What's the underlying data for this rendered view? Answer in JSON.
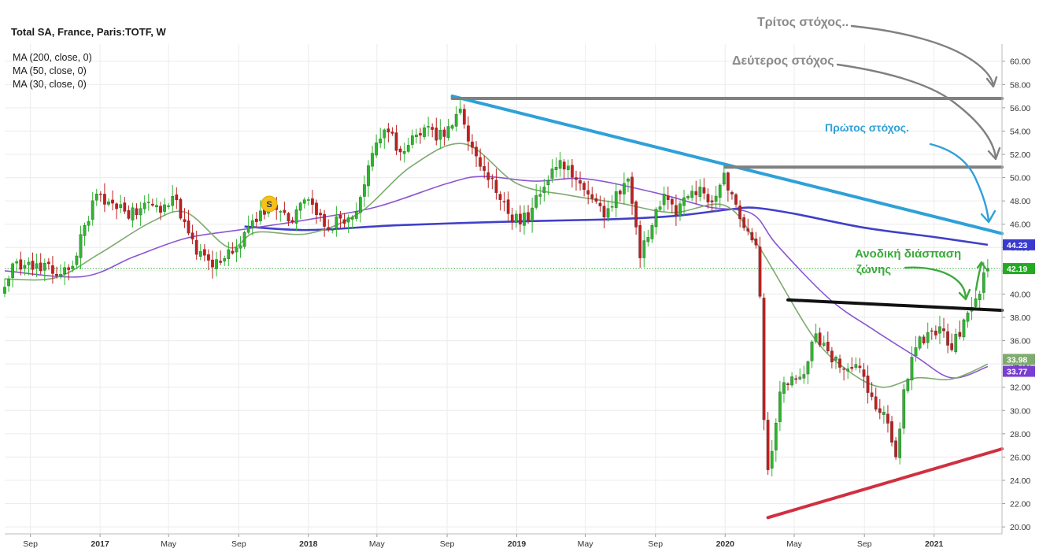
{
  "colors": {
    "up": "#2db52d",
    "down": "#c01f1f",
    "grid": "#ececec",
    "ma200": "#4040c8",
    "ma50": "#8a55d4",
    "ma30": "#7faa70",
    "trend_blue": "#2fa0d8",
    "target_gray": "#808080",
    "neckline": "#111111",
    "support_red": "#d03040",
    "annot_green": "#3caa3c"
  },
  "chart_data": {
    "type": "candlestick",
    "title": "Total SA, France, Paris:TOTF, W",
    "legend": [
      "MA (200, close, 0)",
      "MA (50, close, 0)",
      "MA (30, close, 0)"
    ],
    "y_axis": {
      "position": "right",
      "ylim": [
        19.4,
        61.2
      ],
      "ticks": [
        "20.00",
        "22.00",
        "24.00",
        "26.00",
        "28.00",
        "30.00",
        "32.00",
        "34.00",
        "36.00",
        "38.00",
        "40.00",
        "42.00",
        "44.00",
        "46.00",
        "48.00",
        "50.00",
        "52.00",
        "54.00",
        "56.00",
        "58.00",
        "60.00"
      ]
    },
    "x_axis": {
      "start": "2016-07-18",
      "end": "2021-04-30",
      "ticks": [
        {
          "label": "Sep",
          "date": "2016-09-01",
          "bold": false
        },
        {
          "label": "2017",
          "date": "2017-01-01",
          "bold": true
        },
        {
          "label": "May",
          "date": "2017-05-01",
          "bold": false
        },
        {
          "label": "Sep",
          "date": "2017-09-01",
          "bold": false
        },
        {
          "label": "2018",
          "date": "2018-01-01",
          "bold": true
        },
        {
          "label": "May",
          "date": "2018-05-01",
          "bold": false
        },
        {
          "label": "Sep",
          "date": "2018-09-01",
          "bold": false
        },
        {
          "label": "2019",
          "date": "2019-01-01",
          "bold": true
        },
        {
          "label": "May",
          "date": "2019-05-01",
          "bold": false
        },
        {
          "label": "Sep",
          "date": "2019-09-01",
          "bold": false
        },
        {
          "label": "2020",
          "date": "2020-01-01",
          "bold": true
        },
        {
          "label": "May",
          "date": "2020-05-01",
          "bold": false
        },
        {
          "label": "Sep",
          "date": "2020-09-01",
          "bold": false
        },
        {
          "label": "2021",
          "date": "2021-01-01",
          "bold": true
        }
      ]
    },
    "close_anchors": [
      [
        "2016-07-18",
        40.6
      ],
      [
        "2016-08-08",
        42.8
      ],
      [
        "2016-09-05",
        42.1
      ],
      [
        "2016-10-03",
        42.6
      ],
      [
        "2016-10-24",
        41.7
      ],
      [
        "2016-11-14",
        42.4
      ],
      [
        "2016-12-05",
        45.9
      ],
      [
        "2016-12-26",
        48.6
      ],
      [
        "2017-01-23",
        47.8
      ],
      [
        "2017-02-13",
        47.1
      ],
      [
        "2017-03-06",
        46.8
      ],
      [
        "2017-03-27",
        47.9
      ],
      [
        "2017-04-17",
        47.0
      ],
      [
        "2017-05-08",
        48.4
      ],
      [
        "2017-05-29",
        46.2
      ],
      [
        "2017-06-19",
        43.4
      ],
      [
        "2017-07-10",
        42.9
      ],
      [
        "2017-07-31",
        42.7
      ],
      [
        "2017-08-21",
        43.5
      ],
      [
        "2017-09-11",
        45.3
      ],
      [
        "2017-10-02",
        46.2
      ],
      [
        "2017-10-23",
        47.6
      ],
      [
        "2017-11-13",
        47.1
      ],
      [
        "2017-12-04",
        46.2
      ],
      [
        "2017-12-25",
        48.1
      ],
      [
        "2018-01-15",
        46.8
      ],
      [
        "2018-02-05",
        45.5
      ],
      [
        "2018-02-26",
        46.5
      ],
      [
        "2018-03-19",
        46.6
      ],
      [
        "2018-04-09",
        49.4
      ],
      [
        "2018-04-30",
        53.0
      ],
      [
        "2018-05-21",
        53.9
      ],
      [
        "2018-06-11",
        52.2
      ],
      [
        "2018-07-02",
        53.6
      ],
      [
        "2018-07-23",
        54.3
      ],
      [
        "2018-08-13",
        53.2
      ],
      [
        "2018-09-03",
        54.4
      ],
      [
        "2018-09-24",
        55.9
      ],
      [
        "2018-10-15",
        52.6
      ],
      [
        "2018-11-05",
        50.6
      ],
      [
        "2018-11-26",
        48.7
      ],
      [
        "2018-12-17",
        46.9
      ],
      [
        "2019-01-07",
        46.0
      ],
      [
        "2019-01-28",
        47.4
      ],
      [
        "2019-02-18",
        49.2
      ],
      [
        "2019-03-11",
        50.9
      ],
      [
        "2019-04-01",
        51.0
      ],
      [
        "2019-04-22",
        49.5
      ],
      [
        "2019-05-13",
        48.2
      ],
      [
        "2019-06-03",
        46.6
      ],
      [
        "2019-06-24",
        48.8
      ],
      [
        "2019-07-15",
        49.9
      ],
      [
        "2019-08-05",
        43.1
      ],
      [
        "2019-08-26",
        45.9
      ],
      [
        "2019-09-16",
        48.6
      ],
      [
        "2019-10-07",
        46.8
      ],
      [
        "2019-10-28",
        48.4
      ],
      [
        "2019-11-18",
        49.2
      ],
      [
        "2019-12-09",
        47.9
      ],
      [
        "2019-12-30",
        50.4
      ],
      [
        "2020-01-20",
        47.7
      ],
      [
        "2020-02-10",
        45.4
      ],
      [
        "2020-02-24",
        44.2
      ],
      [
        "2020-03-02",
        39.8
      ],
      [
        "2020-03-09",
        29.2
      ],
      [
        "2020-03-16",
        24.9
      ],
      [
        "2020-03-23",
        26.5
      ],
      [
        "2020-04-06",
        31.6
      ],
      [
        "2020-04-27",
        32.9
      ],
      [
        "2020-05-18",
        33.1
      ],
      [
        "2020-06-08",
        36.6
      ],
      [
        "2020-06-29",
        35.1
      ],
      [
        "2020-07-20",
        33.7
      ],
      [
        "2020-08-10",
        33.6
      ],
      [
        "2020-08-31",
        32.9
      ],
      [
        "2020-09-21",
        30.1
      ],
      [
        "2020-10-12",
        28.9
      ],
      [
        "2020-10-26",
        26.0
      ],
      [
        "2020-11-09",
        31.8
      ],
      [
        "2020-11-30",
        35.4
      ],
      [
        "2020-12-21",
        36.7
      ],
      [
        "2021-01-11",
        37.2
      ],
      [
        "2021-02-01",
        35.2
      ],
      [
        "2021-02-22",
        37.8
      ],
      [
        "2021-03-15",
        39.6
      ],
      [
        "2021-04-05",
        42.19
      ]
    ],
    "moving_averages": [
      {
        "name": "MA (200, close, 0)",
        "color": "#4040c8",
        "points": [
          [
            "2017-09-11",
            45.8
          ],
          [
            "2018-01-01",
            45.5
          ],
          [
            "2018-06-01",
            45.9
          ],
          [
            "2018-12-01",
            46.2
          ],
          [
            "2019-06-01",
            46.4
          ],
          [
            "2019-10-01",
            46.7
          ],
          [
            "2020-01-13",
            47.3
          ],
          [
            "2020-02-24",
            47.4
          ],
          [
            "2020-05-01",
            46.9
          ],
          [
            "2020-09-01",
            45.7
          ],
          [
            "2021-01-01",
            44.9
          ],
          [
            "2021-04-05",
            44.23
          ]
        ]
      },
      {
        "name": "MA (50, close, 0)",
        "color": "#8a55d4",
        "points": [
          [
            "2016-07-18",
            42.0
          ],
          [
            "2016-12-01",
            41.5
          ],
          [
            "2017-03-01",
            43.2
          ],
          [
            "2017-06-01",
            44.8
          ],
          [
            "2017-09-01",
            45.5
          ],
          [
            "2018-01-01",
            46.4
          ],
          [
            "2018-05-01",
            47.5
          ],
          [
            "2018-09-01",
            49.5
          ],
          [
            "2018-11-01",
            50.1
          ],
          [
            "2019-02-01",
            49.7
          ],
          [
            "2019-05-01",
            49.9
          ],
          [
            "2019-09-01",
            48.7
          ],
          [
            "2019-12-01",
            47.5
          ],
          [
            "2020-02-17",
            46.9
          ],
          [
            "2020-04-01",
            44.2
          ],
          [
            "2020-07-01",
            39.6
          ],
          [
            "2020-09-15",
            37.0
          ],
          [
            "2020-12-01",
            34.6
          ],
          [
            "2021-02-01",
            32.8
          ],
          [
            "2021-04-05",
            33.77
          ]
        ]
      },
      {
        "name": "MA (30, close, 0)",
        "color": "#7faa70",
        "points": [
          [
            "2016-07-18",
            41.3
          ],
          [
            "2016-10-15",
            41.4
          ],
          [
            "2017-01-01",
            43.5
          ],
          [
            "2017-04-01",
            46.2
          ],
          [
            "2017-06-01",
            47.0
          ],
          [
            "2017-08-15",
            44.0
          ],
          [
            "2017-10-01",
            45.3
          ],
          [
            "2018-01-01",
            45.2
          ],
          [
            "2018-04-01",
            47.0
          ],
          [
            "2018-07-01",
            51.0
          ],
          [
            "2018-10-01",
            52.9
          ],
          [
            "2019-01-01",
            49.5
          ],
          [
            "2019-04-01",
            48.5
          ],
          [
            "2019-07-01",
            47.8
          ],
          [
            "2019-10-01",
            47.0
          ],
          [
            "2020-01-01",
            47.6
          ],
          [
            "2020-03-01",
            44.0
          ],
          [
            "2020-06-01",
            36.5
          ],
          [
            "2020-08-01",
            33.5
          ],
          [
            "2020-10-01",
            32.0
          ],
          [
            "2020-12-01",
            32.8
          ],
          [
            "2021-02-01",
            32.7
          ],
          [
            "2021-04-05",
            33.98
          ]
        ]
      }
    ],
    "price_tags": [
      {
        "value": 44.23,
        "text": "44.23",
        "color": "#3a3ad0"
      },
      {
        "value": 42.19,
        "text": "42.19",
        "color": "#22aa22"
      },
      {
        "value": 33.98,
        "text": "33.98",
        "color": "#7faa70"
      },
      {
        "value": 33.77,
        "text": "33.77",
        "color": "#7a3fd0"
      }
    ],
    "trendlines": [
      {
        "name": "resistance-downtrend",
        "color": "#2fa0d8",
        "width": 4,
        "from": [
          "2018-09-10",
          57.0
        ],
        "to": [
          "2021-04-30",
          45.2
        ]
      },
      {
        "name": "target-line-2",
        "color": "#808080",
        "width": 4,
        "from": [
          "2018-09-10",
          56.8
        ],
        "to": [
          "2021-04-30",
          56.8
        ]
      },
      {
        "name": "target-line-1",
        "color": "#808080",
        "width": 4,
        "from": [
          "2020-01-01",
          50.9
        ],
        "to": [
          "2021-04-30",
          50.9
        ]
      },
      {
        "name": "neckline",
        "color": "#111111",
        "width": 4,
        "from": [
          "2020-04-20",
          39.5
        ],
        "to": [
          "2021-04-30",
          38.6
        ]
      },
      {
        "name": "support-uptrend",
        "color": "#d03040",
        "width": 4,
        "from": [
          "2020-03-16",
          20.8
        ],
        "to": [
          "2021-04-30",
          26.7
        ]
      }
    ],
    "marker": {
      "label": "S",
      "date": "2017-09-04",
      "value": 46.1
    },
    "annotations": {
      "third_target": "Τρίτος στόχος..",
      "second_target": "Δεύτερος στόχος",
      "first_target": "Πρώτος στόχος.",
      "breakout_line1": "Ανοδική διάσπαση",
      "breakout_line2": "ζώνης"
    }
  }
}
